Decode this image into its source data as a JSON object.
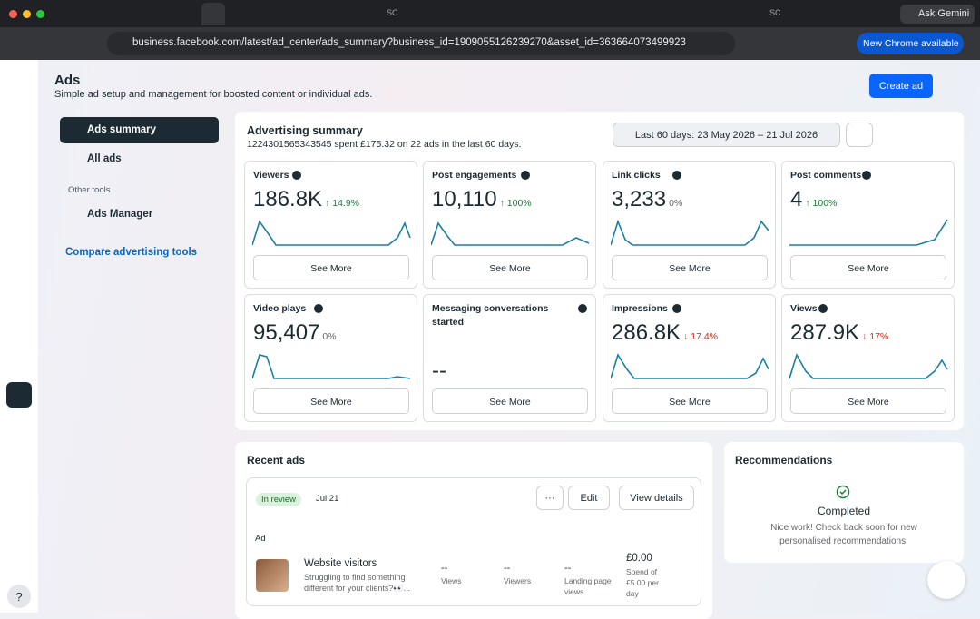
{
  "browser": {
    "favicon_text": "SC",
    "ask": "Ask Gemini",
    "url": "business.facebook.com/latest/ad_center/ads_summary?business_id=1909055126239270&asset_id=363664073499923",
    "update": "New Chrome available"
  },
  "header": {
    "title": "Ads",
    "subtitle": "Simple ad setup and management for boosted content or individual ads.",
    "create": "Create ad"
  },
  "nav": {
    "summary": "Ads summary",
    "all_ads": "All ads",
    "section": "Other tools",
    "tool": "Ads Manager",
    "compare": "Compare advertising tools",
    "help": "?"
  },
  "summary": {
    "title": "Advertising summary",
    "desc": "1224301565343545 spent £175.32 on 22 ads in the last 60 days.",
    "date_range": "Last 60 days: 23 May 2026 – 21 Jul 2026",
    "see_more": "See More",
    "metrics": [
      {
        "label": "Viewers",
        "value": "186.8K",
        "change": "↑ 14.9%",
        "trend": "up"
      },
      {
        "label": "Post engagements",
        "value": "10,110",
        "change": "↑ 100%",
        "trend": "up"
      },
      {
        "label": "Link clicks",
        "value": "3,233",
        "change": "0%",
        "trend": "flat"
      },
      {
        "label": "Post comments",
        "value": "4",
        "change": "↑ 100%",
        "trend": "up"
      },
      {
        "label": "Video plays",
        "value": "95,407",
        "change": "0%",
        "trend": "flat"
      },
      {
        "label": "Messaging conversations started",
        "value": "--",
        "trend": "none"
      },
      {
        "label": "Impressions",
        "value": "286.8K",
        "change": "↓ 17.4%",
        "trend": "down"
      },
      {
        "label": "Views",
        "value": "287.9K",
        "change": "↓ 17%",
        "trend": "down"
      }
    ]
  },
  "recent": {
    "title": "Recent ads",
    "status": "In review",
    "date": "Jul 21",
    "more": "···",
    "edit": "Edit",
    "details": "View details",
    "section": "Ad",
    "ad": {
      "name": "Website visitors",
      "body": "Struggling to find something different for your clients?👀...",
      "stats": [
        {
          "value": "--",
          "label": "Views"
        },
        {
          "value": "--",
          "label": "Viewers"
        },
        {
          "value": "--",
          "label": "Landing page views"
        }
      ],
      "spend": "£0.00",
      "spend_label": "Spend of £5.00 per day"
    }
  },
  "recommendations": {
    "title": "Recommendations",
    "status": "Completed",
    "text": "Nice work! Check back soon for new personalised recommendations."
  }
}
